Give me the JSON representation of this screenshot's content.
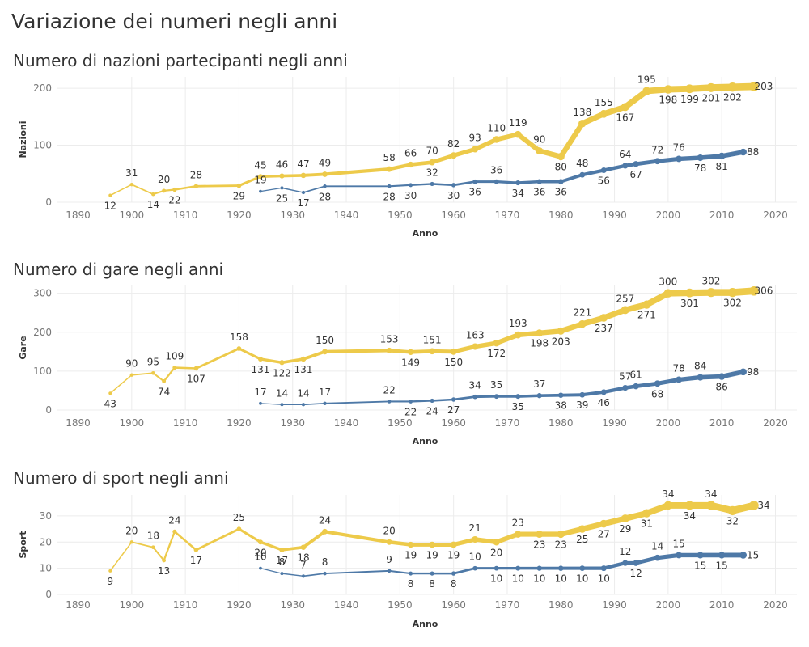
{
  "page_title": "Variazione dei numeri negli anni",
  "colors": {
    "summer": "#EDCA4A",
    "winter": "#4E79A7"
  },
  "chart_data": [
    {
      "type": "line",
      "title": "Numero di nazioni partecipanti negli anni",
      "xlabel": "Anno",
      "ylabel": "Nazioni",
      "xlim": [
        1886,
        2024
      ],
      "ylim": [
        0,
        220
      ],
      "xticks": [
        1890,
        1900,
        1910,
        1920,
        1930,
        1940,
        1950,
        1960,
        1970,
        1980,
        1990,
        2000,
        2010,
        2020
      ],
      "yticks": [
        0,
        100,
        200
      ],
      "series": [
        {
          "color": "#EDCA4A",
          "x": [
            1896,
            1900,
            1904,
            1906,
            1908,
            1912,
            1920,
            1924,
            1928,
            1932,
            1936,
            1948,
            1952,
            1956,
            1960,
            1964,
            1968,
            1972,
            1976,
            1980,
            1984,
            1988,
            1992,
            1996,
            2000,
            2004,
            2008,
            2012,
            2016
          ],
          "values": [
            12,
            31,
            14,
            20,
            22,
            28,
            29,
            45,
            46,
            47,
            49,
            58,
            66,
            70,
            82,
            93,
            110,
            119,
            90,
            80,
            138,
            155,
            167,
            195,
            198,
            199,
            201,
            202,
            203
          ],
          "labels_below": [
            1896,
            1904,
            1908,
            1920,
            1980,
            1992,
            2000,
            2004,
            2008,
            2012
          ]
        },
        {
          "color": "#4E79A7",
          "x": [
            1924,
            1928,
            1932,
            1936,
            1948,
            1952,
            1956,
            1960,
            1964,
            1968,
            1972,
            1976,
            1980,
            1984,
            1988,
            1992,
            1994,
            1998,
            2002,
            2006,
            2010,
            2014
          ],
          "values": [
            19,
            25,
            17,
            28,
            28,
            30,
            32,
            30,
            36,
            36,
            34,
            36,
            36,
            48,
            56,
            64,
            67,
            72,
            76,
            78,
            81,
            88
          ],
          "labels_below": [
            1928,
            1932,
            1936,
            1948,
            1952,
            1960,
            1964,
            1972,
            1976,
            1980,
            1988,
            1994,
            2006,
            2010
          ]
        }
      ]
    },
    {
      "type": "line",
      "title": "Numero di gare negli anni",
      "xlabel": "Anno",
      "ylabel": "Gare",
      "xlim": [
        1886,
        2024
      ],
      "ylim": [
        0,
        320
      ],
      "xticks": [
        1890,
        1900,
        1910,
        1920,
        1930,
        1940,
        1950,
        1960,
        1970,
        1980,
        1990,
        2000,
        2010,
        2020
      ],
      "yticks": [
        0,
        100,
        200,
        300
      ],
      "series": [
        {
          "color": "#EDCA4A",
          "x": [
            1896,
            1900,
            1904,
            1906,
            1908,
            1912,
            1920,
            1924,
            1928,
            1932,
            1936,
            1948,
            1952,
            1956,
            1960,
            1964,
            1968,
            1972,
            1976,
            1980,
            1984,
            1988,
            1992,
            1996,
            2000,
            2004,
            2008,
            2012,
            2016
          ],
          "values": [
            43,
            90,
            95,
            74,
            109,
            107,
            158,
            131,
            122,
            131,
            150,
            153,
            149,
            151,
            150,
            163,
            172,
            193,
            198,
            203,
            221,
            237,
            257,
            271,
            300,
            301,
            302,
            302,
            306
          ],
          "labels_below": [
            1896,
            1906,
            1912,
            1924,
            1928,
            1932,
            1952,
            1960,
            1968,
            1976,
            1980,
            1988,
            1996,
            2004,
            2012
          ]
        },
        {
          "color": "#4E79A7",
          "x": [
            1924,
            1928,
            1932,
            1936,
            1948,
            1952,
            1956,
            1960,
            1964,
            1968,
            1972,
            1976,
            1980,
            1984,
            1988,
            1992,
            1994,
            1998,
            2002,
            2006,
            2010,
            2014
          ],
          "values": [
            17,
            14,
            14,
            17,
            22,
            22,
            24,
            27,
            34,
            35,
            35,
            37,
            38,
            39,
            46,
            57,
            61,
            68,
            78,
            84,
            86,
            98
          ],
          "labels_below": [
            1952,
            1956,
            1960,
            1972,
            1980,
            1984,
            1988,
            1998,
            2010
          ]
        }
      ]
    },
    {
      "type": "line",
      "title": "Numero di sport negli anni",
      "xlabel": "Anno",
      "ylabel": "Sport",
      "xlim": [
        1886,
        2024
      ],
      "ylim": [
        0,
        38
      ],
      "xticks": [
        1890,
        1900,
        1910,
        1920,
        1930,
        1940,
        1950,
        1960,
        1970,
        1980,
        1990,
        2000,
        2010,
        2020
      ],
      "yticks": [
        0,
        10,
        20,
        30
      ],
      "series": [
        {
          "color": "#EDCA4A",
          "x": [
            1896,
            1900,
            1904,
            1906,
            1908,
            1912,
            1920,
            1924,
            1928,
            1932,
            1936,
            1948,
            1952,
            1956,
            1960,
            1964,
            1968,
            1972,
            1976,
            1980,
            1984,
            1988,
            1992,
            1996,
            2000,
            2004,
            2008,
            2012,
            2016
          ],
          "values": [
            9,
            20,
            18,
            13,
            24,
            17,
            25,
            20,
            17,
            18,
            24,
            20,
            19,
            19,
            19,
            21,
            20,
            23,
            23,
            23,
            25,
            27,
            29,
            31,
            34,
            34,
            34,
            32,
            34
          ],
          "labels_below": [
            1896,
            1906,
            1912,
            1924,
            1928,
            1932,
            1952,
            1956,
            1960,
            1968,
            1976,
            1980,
            1984,
            1988,
            1992,
            1996,
            2004,
            2012
          ]
        },
        {
          "color": "#4E79A7",
          "x": [
            1924,
            1928,
            1932,
            1936,
            1948,
            1952,
            1956,
            1960,
            1964,
            1968,
            1972,
            1976,
            1980,
            1984,
            1988,
            1992,
            1994,
            1998,
            2002,
            2006,
            2010,
            2014
          ],
          "values": [
            10,
            8,
            7,
            8,
            9,
            8,
            8,
            8,
            10,
            10,
            10,
            10,
            10,
            10,
            10,
            12,
            12,
            14,
            15,
            15,
            15,
            15
          ],
          "labels_below": [
            1952,
            1956,
            1960,
            1968,
            1972,
            1976,
            1980,
            1984,
            1988,
            1994,
            2006,
            2010
          ]
        }
      ]
    }
  ]
}
